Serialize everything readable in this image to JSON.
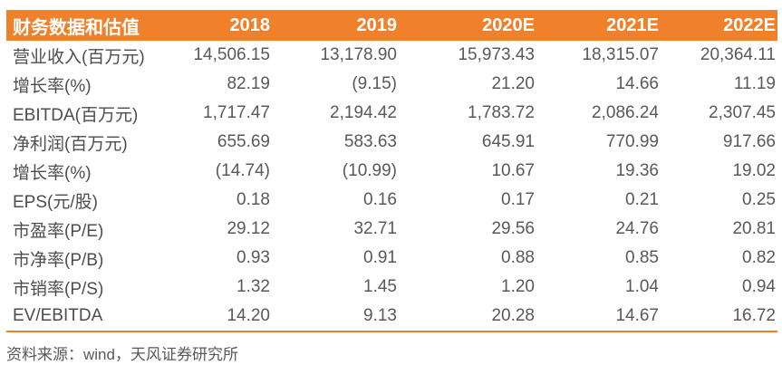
{
  "table": {
    "title": "财务数据和估值",
    "columns": [
      "2018",
      "2019",
      "2020E",
      "2021E",
      "2022E"
    ],
    "rows": [
      {
        "label": "营业收入(百万元)",
        "values": [
          "14,506.15",
          "13,178.90",
          "15,973.43",
          "18,315.07",
          "20,364.11"
        ]
      },
      {
        "label": "增长率(%)",
        "values": [
          "82.19",
          "(9.15)",
          "21.20",
          "14.66",
          "11.19"
        ]
      },
      {
        "label": "EBITDA(百万元)",
        "values": [
          "1,717.47",
          "2,194.42",
          "1,783.72",
          "2,086.24",
          "2,307.45"
        ]
      },
      {
        "label": "净利润(百万元)",
        "values": [
          "655.69",
          "583.63",
          "645.91",
          "770.99",
          "917.66"
        ]
      },
      {
        "label": "增长率(%)",
        "values": [
          "(14.74)",
          "(10.99)",
          "10.67",
          "19.36",
          "19.02"
        ]
      },
      {
        "label": "EPS(元/股)",
        "values": [
          "0.18",
          "0.16",
          "0.17",
          "0.21",
          "0.25"
        ]
      },
      {
        "label": "市盈率(P/E)",
        "values": [
          "29.12",
          "32.71",
          "29.56",
          "24.76",
          "20.81"
        ]
      },
      {
        "label": "市净率(P/B)",
        "values": [
          "0.93",
          "0.91",
          "0.88",
          "0.85",
          "0.82"
        ]
      },
      {
        "label": "市销率(P/S)",
        "values": [
          "1.32",
          "1.45",
          "1.20",
          "1.04",
          "0.94"
        ]
      },
      {
        "label": "EV/EBITDA",
        "values": [
          "14.20",
          "9.13",
          "20.28",
          "14.67",
          "16.72"
        ]
      }
    ]
  },
  "footer": {
    "source": "资料来源：wind，天风证券研究所"
  },
  "colors": {
    "header_bg": "#F0812A",
    "header_text": "#FFFFFF",
    "row_label_text": "#4D4D4D",
    "cell_text": "#595959",
    "bottom_rule": "#F0812A",
    "page_bg": "#FFFFFF"
  }
}
